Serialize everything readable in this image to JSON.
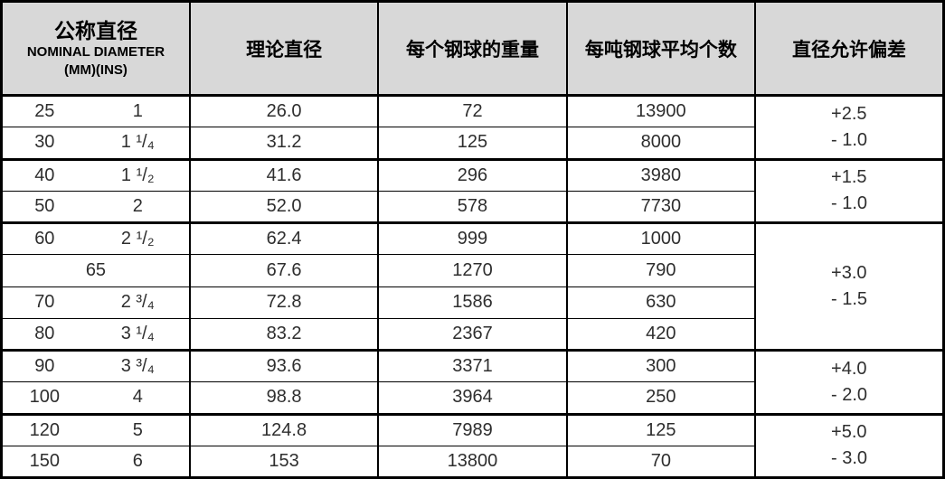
{
  "header": {
    "nominal_cn": "公称直径",
    "nominal_en": "NOMINAL DIAMETER",
    "nominal_units": "(MM)(INS)",
    "theoretical": "理论直径",
    "weight": "每个钢球的重量",
    "per_ton": "每吨钢球平均个数",
    "tolerance": "直径允许偏差"
  },
  "rows": [
    {
      "mm": "25",
      "ins": "1",
      "theoretical": "26.0",
      "weight": "72",
      "per_ton": "13900"
    },
    {
      "mm": "30",
      "ins": "1 ¹/₄",
      "theoretical": "31.2",
      "weight": "125",
      "per_ton": "8000"
    },
    {
      "mm": "40",
      "ins": "1 ¹/₂",
      "theoretical": "41.6",
      "weight": "296",
      "per_ton": "3980"
    },
    {
      "mm": "50",
      "ins": "2",
      "theoretical": "52.0",
      "weight": "578",
      "per_ton": "7730"
    },
    {
      "mm": "60",
      "ins": "2 ¹/₂",
      "theoretical": "62.4",
      "weight": "999",
      "per_ton": "1000"
    },
    {
      "mm": "65",
      "ins": "",
      "theoretical": "67.6",
      "weight": "1270",
      "per_ton": "790"
    },
    {
      "mm": "70",
      "ins": "2 ³/₄",
      "theoretical": "72.8",
      "weight": "1586",
      "per_ton": "630"
    },
    {
      "mm": "80",
      "ins": "3 ¹/₄",
      "theoretical": "83.2",
      "weight": "2367",
      "per_ton": "420"
    },
    {
      "mm": "90",
      "ins": "3 ³/₄",
      "theoretical": "93.6",
      "weight": "3371",
      "per_ton": "300"
    },
    {
      "mm": "100",
      "ins": "4",
      "theoretical": "98.8",
      "weight": "3964",
      "per_ton": "250"
    },
    {
      "mm": "120",
      "ins": "5",
      "theoretical": "124.8",
      "weight": "7989",
      "per_ton": "125"
    },
    {
      "mm": "150",
      "ins": "6",
      "theoretical": "153",
      "weight": "13800",
      "per_ton": "70"
    }
  ],
  "tolerances": [
    {
      "plus": "+2.5",
      "minus": "- 1.0"
    },
    {
      "plus": "+1.5",
      "minus": "- 1.0"
    },
    {
      "plus": "+3.0",
      "minus": "- 1.5"
    },
    {
      "plus": "+4.0",
      "minus": "- 2.0"
    },
    {
      "plus": "+5.0",
      "minus": "- 3.0"
    }
  ],
  "colors": {
    "header_bg": "#d8d8d8",
    "border": "#000000",
    "data_text": "#2e2e2e"
  },
  "chart_data": {
    "type": "table",
    "columns": [
      "公称直径 NOMINAL DIAMETER (MM)",
      "公称直径 NOMINAL DIAMETER (INS)",
      "理论直径",
      "每个钢球的重量",
      "每吨钢球平均个数",
      "直径允许偏差"
    ],
    "rows": [
      [
        "25",
        "1",
        "26.0",
        "72",
        "13900",
        "+2.5 / - 1.0"
      ],
      [
        "30",
        "1 1/4",
        "31.2",
        "125",
        "8000",
        "+2.5 / - 1.0"
      ],
      [
        "40",
        "1 1/2",
        "41.6",
        "296",
        "3980",
        "+1.5 / - 1.0"
      ],
      [
        "50",
        "2",
        "52.0",
        "578",
        "7730",
        "+1.5 / - 1.0"
      ],
      [
        "60",
        "2 1/2",
        "62.4",
        "999",
        "1000",
        "+3.0 / - 1.5"
      ],
      [
        "65",
        "",
        "67.6",
        "1270",
        "790",
        "+3.0 / - 1.5"
      ],
      [
        "70",
        "2 3/4",
        "72.8",
        "1586",
        "630",
        "+3.0 / - 1.5"
      ],
      [
        "80",
        "3 1/4",
        "83.2",
        "2367",
        "420",
        "+3.0 / - 1.5"
      ],
      [
        "90",
        "3 3/4",
        "93.6",
        "3371",
        "300",
        "+4.0 / - 2.0"
      ],
      [
        "100",
        "4",
        "98.8",
        "3964",
        "250",
        "+4.0 / - 2.0"
      ],
      [
        "120",
        "5",
        "124.8",
        "7989",
        "125",
        "+5.0 / - 3.0"
      ],
      [
        "150",
        "6",
        "153",
        "13800",
        "70",
        "+5.0 / - 3.0"
      ]
    ]
  }
}
